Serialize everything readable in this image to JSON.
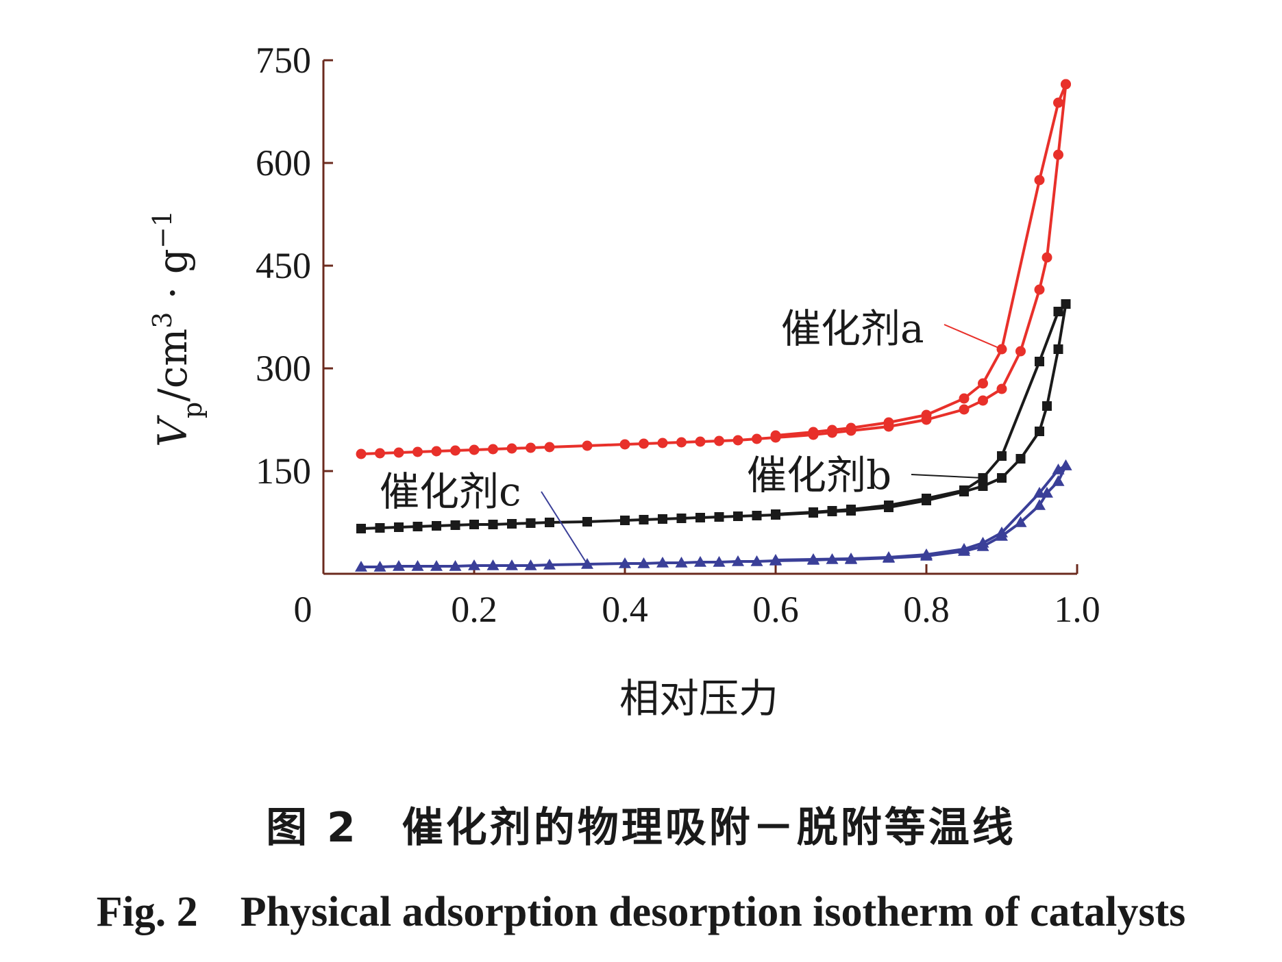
{
  "caption": {
    "cn": "图 2　催化剂的物理吸附－脱附等温线",
    "en": "Fig. 2　Physical adsorption desorption isotherm of catalysts"
  },
  "chart_data": {
    "type": "line",
    "xlabel": "相对压力",
    "ylabel": "Vp/cm3·g-1",
    "ylabel_parts": {
      "main": "V",
      "sub": "p",
      "unit": "/cm",
      "sup1": "3",
      "dot": " · g",
      "sup2": "−1"
    },
    "xlim": [
      0,
      1.0
    ],
    "ylim": [
      0,
      750
    ],
    "x_ticks": [
      "0",
      "0.2",
      "0.4",
      "0.6",
      "0.8",
      "1.0"
    ],
    "y_ticks": [
      "150",
      "300",
      "450",
      "600",
      "750"
    ],
    "grid": false,
    "series": [
      {
        "name": "催化剂a",
        "color": "#e8302a",
        "marker": "circle",
        "adsorption": {
          "x": [
            0.05,
            0.075,
            0.1,
            0.125,
            0.15,
            0.175,
            0.2,
            0.225,
            0.25,
            0.275,
            0.3,
            0.35,
            0.4,
            0.425,
            0.45,
            0.475,
            0.5,
            0.525,
            0.55,
            0.575,
            0.6,
            0.65,
            0.675,
            0.7,
            0.75,
            0.8,
            0.85,
            0.875,
            0.9,
            0.925,
            0.95,
            0.96,
            0.975,
            0.985
          ],
          "y": [
            175,
            176,
            177,
            178,
            179,
            180,
            181,
            182,
            183,
            184,
            185,
            187,
            189,
            190,
            191,
            192,
            193,
            194,
            195,
            197,
            199,
            203,
            206,
            209,
            215,
            225,
            240,
            253,
            270,
            325,
            415,
            462,
            612,
            715
          ]
        },
        "desorption": {
          "x": [
            0.985,
            0.975,
            0.95,
            0.9,
            0.875,
            0.85,
            0.8,
            0.75,
            0.7,
            0.675,
            0.65,
            0.6
          ],
          "y": [
            715,
            688,
            575,
            328,
            278,
            256,
            232,
            221,
            213,
            210,
            207,
            202
          ]
        }
      },
      {
        "name": "催化剂b",
        "color": "#1a1a1a",
        "marker": "square",
        "adsorption": {
          "x": [
            0.05,
            0.075,
            0.1,
            0.125,
            0.15,
            0.175,
            0.2,
            0.225,
            0.25,
            0.275,
            0.3,
            0.35,
            0.4,
            0.425,
            0.45,
            0.475,
            0.5,
            0.525,
            0.55,
            0.575,
            0.6,
            0.65,
            0.675,
            0.7,
            0.75,
            0.8,
            0.85,
            0.875,
            0.9,
            0.925,
            0.95,
            0.96,
            0.975,
            0.985
          ],
          "y": [
            66,
            67,
            68,
            69,
            70,
            71,
            72,
            72,
            73,
            74,
            75,
            76,
            78,
            79,
            80,
            81,
            82,
            83,
            84,
            85,
            86,
            89,
            91,
            92,
            97,
            107,
            120,
            128,
            140,
            168,
            208,
            245,
            328,
            394
          ]
        },
        "desorption": {
          "x": [
            0.985,
            0.975,
            0.95,
            0.9,
            0.875,
            0.85,
            0.8,
            0.75,
            0.7,
            0.675,
            0.65,
            0.6
          ],
          "y": [
            394,
            383,
            310,
            172,
            140,
            122,
            110,
            100,
            94,
            92,
            90,
            87
          ]
        }
      },
      {
        "name": "催化剂c",
        "color": "#3a3f98",
        "marker": "triangle",
        "adsorption": {
          "x": [
            0.05,
            0.075,
            0.1,
            0.125,
            0.15,
            0.175,
            0.2,
            0.225,
            0.25,
            0.275,
            0.3,
            0.35,
            0.4,
            0.425,
            0.45,
            0.475,
            0.5,
            0.525,
            0.55,
            0.575,
            0.6,
            0.65,
            0.675,
            0.7,
            0.75,
            0.8,
            0.85,
            0.875,
            0.9,
            0.925,
            0.95,
            0.96,
            0.975,
            0.985
          ],
          "y": [
            10,
            10,
            11,
            11,
            11,
            11,
            12,
            12,
            12,
            12,
            13,
            14,
            15,
            15,
            16,
            16,
            17,
            17,
            18,
            18,
            19,
            20,
            21,
            21,
            23,
            26,
            33,
            40,
            55,
            75,
            100,
            118,
            135,
            158
          ]
        },
        "desorption": {
          "x": [
            0.985,
            0.975,
            0.95,
            0.9,
            0.875,
            0.85,
            0.8,
            0.75,
            0.7,
            0.65,
            0.6
          ],
          "y": [
            158,
            152,
            118,
            60,
            45,
            36,
            28,
            24,
            22,
            21,
            20
          ]
        }
      }
    ],
    "annotations": [
      {
        "text": "催化剂a",
        "series": 0
      },
      {
        "text": "催化剂b",
        "series": 1
      },
      {
        "text": "催化剂c",
        "series": 2
      }
    ]
  }
}
